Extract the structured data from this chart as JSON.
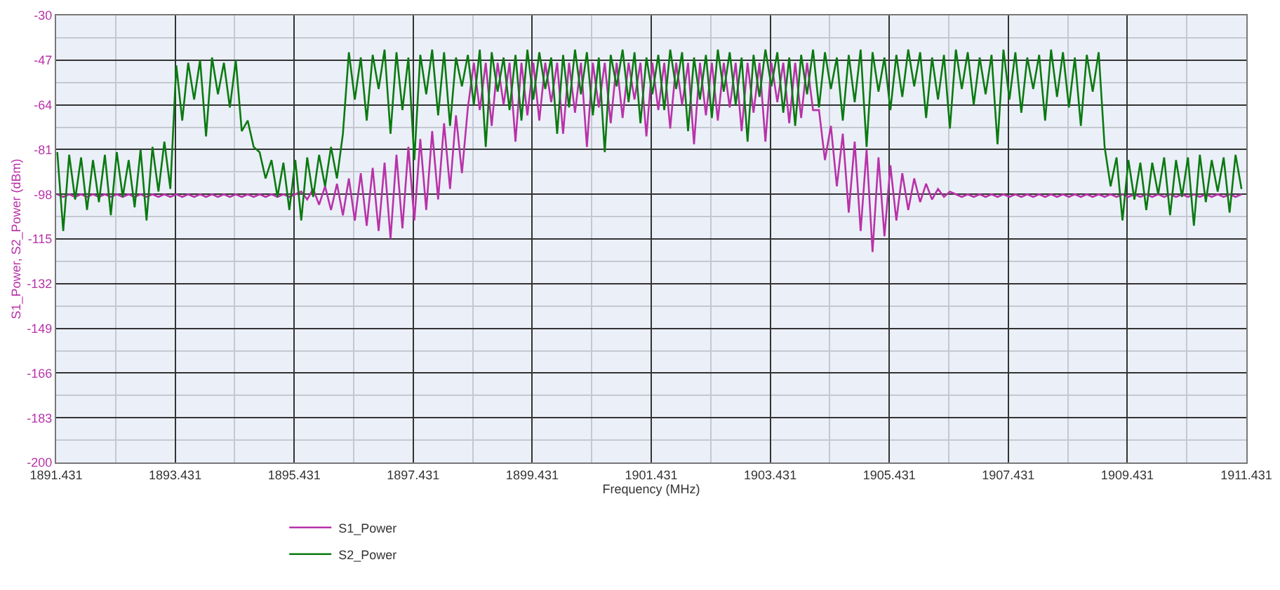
{
  "chart_data": {
    "type": "line",
    "xlabel": "Frequency (MHz)",
    "ylabel": "S1_Power, S2_Power (dBm)",
    "xlim": [
      1891.431,
      1911.431
    ],
    "xticks": [
      1891.431,
      1893.431,
      1895.431,
      1897.431,
      1899.431,
      1901.431,
      1903.431,
      1905.431,
      1907.431,
      1909.431,
      1911.431
    ],
    "ylim": [
      -200,
      -30
    ],
    "yticks": [
      -200,
      -183,
      -166,
      -149,
      -132,
      -115,
      -98,
      -81,
      -64,
      -47,
      -30
    ],
    "grid": true,
    "legend": "bottom",
    "x": [
      1891.45,
      1891.55,
      1891.65,
      1891.75,
      1891.85,
      1891.95,
      1892.05,
      1892.15,
      1892.25,
      1892.35,
      1892.45,
      1892.55,
      1892.65,
      1892.75,
      1892.85,
      1892.95,
      1893.05,
      1893.15,
      1893.25,
      1893.35,
      1893.45,
      1893.55,
      1893.65,
      1893.75,
      1893.85,
      1893.95,
      1894.05,
      1894.15,
      1894.25,
      1894.35,
      1894.45,
      1894.55,
      1894.65,
      1894.75,
      1894.85,
      1894.95,
      1895.05,
      1895.15,
      1895.25,
      1895.35,
      1895.45,
      1895.55,
      1895.65,
      1895.75,
      1895.85,
      1895.95,
      1896.05,
      1896.15,
      1896.25,
      1896.35,
      1896.45,
      1896.55,
      1896.65,
      1896.75,
      1896.85,
      1896.95,
      1897.05,
      1897.15,
      1897.25,
      1897.35,
      1897.45,
      1897.55,
      1897.65,
      1897.75,
      1897.85,
      1897.95,
      1898.05,
      1898.15,
      1898.25,
      1898.35,
      1898.45,
      1898.55,
      1898.65,
      1898.75,
      1898.85,
      1898.95,
      1899.05,
      1899.15,
      1899.25,
      1899.35,
      1899.45,
      1899.55,
      1899.65,
      1899.75,
      1899.85,
      1899.95,
      1900.05,
      1900.15,
      1900.25,
      1900.35,
      1900.45,
      1900.55,
      1900.65,
      1900.75,
      1900.85,
      1900.95,
      1901.05,
      1901.15,
      1901.25,
      1901.35,
      1901.45,
      1901.55,
      1901.65,
      1901.75,
      1901.85,
      1901.95,
      1902.05,
      1902.15,
      1902.25,
      1902.35,
      1902.45,
      1902.55,
      1902.65,
      1902.75,
      1902.85,
      1902.95,
      1903.05,
      1903.15,
      1903.25,
      1903.35,
      1903.45,
      1903.55,
      1903.65,
      1903.75,
      1903.85,
      1903.95,
      1904.05,
      1904.15,
      1904.25,
      1904.35,
      1904.45,
      1904.55,
      1904.65,
      1904.75,
      1904.85,
      1904.95,
      1905.05,
      1905.15,
      1905.25,
      1905.35,
      1905.45,
      1905.55,
      1905.65,
      1905.75,
      1905.85,
      1905.95,
      1906.05,
      1906.15,
      1906.25,
      1906.35,
      1906.45,
      1906.55,
      1906.65,
      1906.75,
      1906.85,
      1906.95,
      1907.05,
      1907.15,
      1907.25,
      1907.35,
      1907.45,
      1907.55,
      1907.65,
      1907.75,
      1907.85,
      1907.95,
      1908.05,
      1908.15,
      1908.25,
      1908.35,
      1908.45,
      1908.55,
      1908.65,
      1908.75,
      1908.85,
      1908.95,
      1909.05,
      1909.15,
      1909.25,
      1909.35,
      1909.45,
      1909.55,
      1909.65,
      1909.75,
      1909.85,
      1909.95,
      1910.05,
      1910.15,
      1910.25,
      1910.35,
      1910.45,
      1910.55,
      1910.65,
      1910.75,
      1910.85,
      1910.95,
      1911.05,
      1911.15,
      1911.25,
      1911.35
    ],
    "series": [
      {
        "name": "S1_Power",
        "color": "#b832a8",
        "values": [
          -98,
          -99,
          -98,
          -99,
          -98,
          -99,
          -98,
          -99,
          -98,
          -99,
          -98,
          -99,
          -98,
          -99,
          -98,
          -99,
          -98,
          -99,
          -98,
          -99,
          -98,
          -99,
          -98,
          -99,
          -98,
          -99,
          -98,
          -99,
          -98,
          -99,
          -98,
          -99,
          -98,
          -99,
          -98,
          -99,
          -98,
          -99,
          -98,
          -99,
          -98,
          -97,
          -100,
          -96,
          -102,
          -95,
          -104,
          -94,
          -106,
          -92,
          -108,
          -90,
          -110,
          -88,
          -112,
          -86,
          -115,
          -83,
          -111,
          -80,
          -108,
          -77,
          -104,
          -74,
          -100,
          -71,
          -96,
          -68,
          -90,
          -65,
          -48,
          -66,
          -48,
          -72,
          -48,
          -64,
          -48,
          -78,
          -48,
          -68,
          -48,
          -70,
          -48,
          -63,
          -48,
          -75,
          -48,
          -67,
          -48,
          -80,
          -48,
          -65,
          -48,
          -71,
          -48,
          -69,
          -48,
          -62,
          -48,
          -76,
          -48,
          -66,
          -48,
          -73,
          -48,
          -64,
          -48,
          -79,
          -48,
          -68,
          -48,
          -70,
          -48,
          -65,
          -48,
          -74,
          -48,
          -67,
          -48,
          -78,
          -48,
          -63,
          -48,
          -71,
          -48,
          -69,
          -48,
          -66,
          -66,
          -85,
          -72,
          -95,
          -75,
          -105,
          -78,
          -112,
          -81,
          -120,
          -84,
          -114,
          -87,
          -108,
          -90,
          -104,
          -92,
          -101,
          -94,
          -100,
          -96,
          -99,
          -97,
          -98,
          -99,
          -98,
          -99,
          -98,
          -99,
          -98,
          -99,
          -98,
          -99,
          -98,
          -99,
          -98,
          -99,
          -98,
          -99,
          -98,
          -99,
          -98,
          -99,
          -98,
          -99,
          -98,
          -99,
          -98,
          -99,
          -98,
          -99,
          -98,
          -99,
          -98,
          -99,
          -98,
          -99,
          -98,
          -99,
          -98,
          -99,
          -98,
          -99,
          -98,
          -99,
          -98,
          -99,
          -98,
          -99,
          -98,
          -99,
          -98
        ]
      },
      {
        "name": "S2_Power",
        "color": "#0a7a10",
        "values": [
          -82,
          -112,
          -83,
          -100,
          -84,
          -104,
          -85,
          -101,
          -83,
          -106,
          -82,
          -99,
          -85,
          -103,
          -81,
          -108,
          -80,
          -97,
          -78,
          -96,
          -49,
          -70,
          -48,
          -62,
          -47,
          -76,
          -46,
          -60,
          -48,
          -65,
          -47,
          -74,
          -70,
          -80,
          -82,
          -92,
          -85,
          -99,
          -86,
          -104,
          -85,
          -108,
          -84,
          -99,
          -83,
          -95,
          -80,
          -92,
          -75,
          -44,
          -62,
          -46,
          -70,
          -45,
          -58,
          -43,
          -75,
          -44,
          -66,
          -46,
          -85,
          -45,
          -60,
          -43,
          -68,
          -44,
          -72,
          -46,
          -57,
          -45,
          -64,
          -43,
          -80,
          -44,
          -59,
          -46,
          -66,
          -45,
          -70,
          -43,
          -62,
          -44,
          -58,
          -46,
          -75,
          -45,
          -65,
          -43,
          -60,
          -44,
          -68,
          -46,
          -82,
          -45,
          -57,
          -43,
          -63,
          -44,
          -71,
          -46,
          -60,
          -45,
          -66,
          -43,
          -58,
          -44,
          -74,
          -46,
          -62,
          -45,
          -69,
          -43,
          -59,
          -44,
          -64,
          -46,
          -78,
          -45,
          -61,
          -43,
          -57,
          -44,
          -67,
          -46,
          -72,
          -45,
          -60,
          -43,
          -65,
          -44,
          -58,
          -46,
          -70,
          -45,
          -63,
          -43,
          -80,
          -44,
          -59,
          -46,
          -66,
          -45,
          -61,
          -43,
          -57,
          -44,
          -69,
          -46,
          -62,
          -45,
          -73,
          -43,
          -58,
          -44,
          -64,
          -46,
          -60,
          -45,
          -79,
          -43,
          -62,
          -44,
          -67,
          -46,
          -58,
          -45,
          -70,
          -43,
          -61,
          -44,
          -65,
          -46,
          -72,
          -45,
          -59,
          -44,
          -80,
          -95,
          -84,
          -108,
          -85,
          -100,
          -86,
          -104,
          -86,
          -98,
          -84,
          -106,
          -85,
          -99,
          -84,
          -110,
          -83,
          -101,
          -85,
          -97,
          -84,
          -105,
          -83,
          -96
        ]
      }
    ]
  }
}
